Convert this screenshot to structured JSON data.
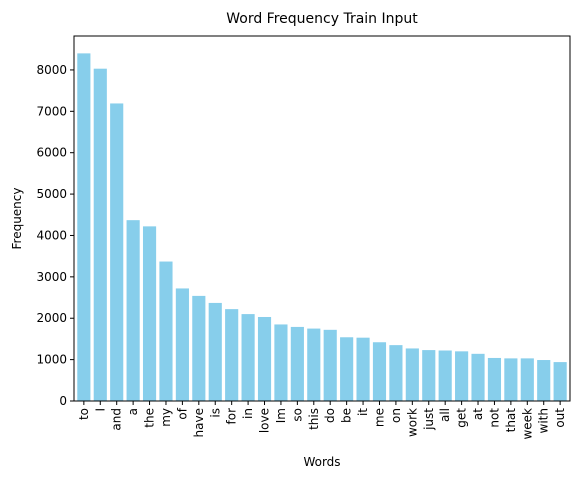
{
  "chart_data": {
    "type": "bar",
    "title": "Word Frequency Train Input",
    "xlabel": "Words",
    "ylabel": "Frequency",
    "ylim": [
      0,
      8820
    ],
    "yticks": [
      0,
      1000,
      2000,
      3000,
      4000,
      5000,
      6000,
      7000,
      8000
    ],
    "bar_color": "#87ceeb",
    "grid": false,
    "categories": [
      "to",
      "I",
      "and",
      "a",
      "the",
      "my",
      "of",
      "have",
      "is",
      "for",
      "in",
      "love",
      "Im",
      "so",
      "this",
      "do",
      "be",
      "it",
      "me",
      "on",
      "work",
      "just",
      "all",
      "get",
      "at",
      "not",
      "that",
      "week",
      "with",
      "out"
    ],
    "values": [
      8400,
      8030,
      7190,
      4370,
      4220,
      3370,
      2720,
      2540,
      2370,
      2220,
      2100,
      2030,
      1850,
      1790,
      1750,
      1720,
      1540,
      1530,
      1420,
      1350,
      1270,
      1230,
      1220,
      1200,
      1140,
      1040,
      1030,
      1030,
      990,
      940
    ]
  }
}
